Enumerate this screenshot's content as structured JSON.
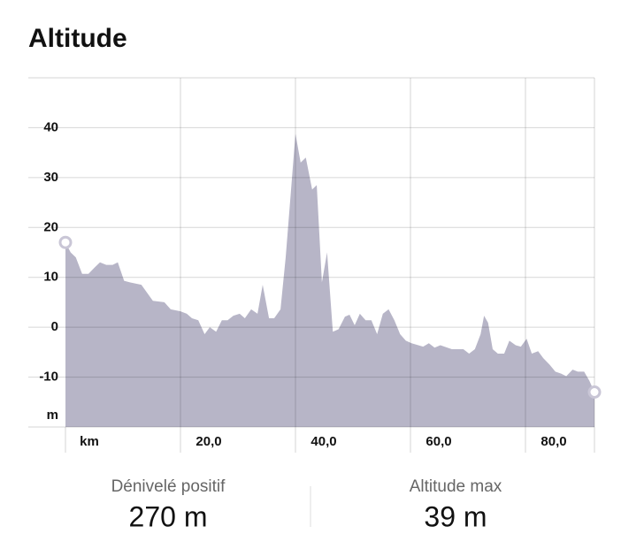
{
  "chart_data": {
    "type": "area",
    "title": "Altitude",
    "y_unit": "m",
    "x_unit": "km",
    "color": "#b7b5c7",
    "marker_color": "#c9c6d6",
    "x": [
      0,
      0.9,
      1.8,
      2.9,
      4,
      5.1,
      6,
      7.1,
      8.2,
      9.1,
      10.2,
      11.2,
      13.2,
      15.2,
      17.2,
      18.3,
      20,
      21.1,
      22,
      23.1,
      24.2,
      25.1,
      26.2,
      27.2,
      28.2,
      29.2,
      30.3,
      31.2,
      32.3,
      33.4,
      34.3,
      35.4,
      36.3,
      37.4,
      38.3,
      39.4,
      40,
      40.9,
      41.8,
      42.9,
      43.7,
      44.6,
      45.5,
      46.5,
      47.5,
      48.6,
      49.4,
      50.3,
      51.2,
      52.2,
      53.2,
      54.2,
      55.2,
      56.2,
      57.2,
      58.2,
      59.2,
      60.2,
      62.2,
      63.2,
      64.2,
      65.2,
      67.2,
      69.2,
      70.2,
      71.2,
      72.2,
      72.8,
      73.5,
      74.3,
      75.2,
      76.3,
      77.2,
      78.3,
      79.2,
      80.2,
      81.1,
      82.2,
      83.1,
      84.2,
      85.2,
      86.2,
      87.1,
      88.2,
      89.1,
      90.2,
      91.1,
      92
    ],
    "values": [
      17,
      15,
      14,
      10.7,
      10.7,
      12,
      13,
      12.5,
      12.5,
      13,
      9.3,
      9,
      8.5,
      5.3,
      5,
      3.6,
      3.2,
      2.7,
      1.8,
      1.4,
      -1.4,
      0,
      -0.9,
      1.4,
      1.4,
      2.3,
      2.7,
      1.8,
      3.6,
      2.7,
      8.5,
      1.8,
      1.8,
      3.6,
      14,
      30,
      38.8,
      33,
      34,
      27.6,
      28.5,
      9,
      15,
      -0.9,
      -0.4,
      2.1,
      2.5,
      0.4,
      2.7,
      1.4,
      1.4,
      -1.4,
      2.7,
      3.6,
      1.4,
      -1.4,
      -2.7,
      -3.2,
      -3.9,
      -3.2,
      -4.1,
      -3.6,
      -4.4,
      -4.4,
      -5.3,
      -4.4,
      -1.4,
      2.3,
      0.9,
      -4.4,
      -5.3,
      -5.3,
      -2.7,
      -3.6,
      -3.9,
      -2.3,
      -5.3,
      -4.8,
      -6.2,
      -7.5,
      -8.9,
      -9.3,
      -9.8,
      -8.5,
      -8.9,
      -8.9,
      -10.7,
      -13
    ],
    "xlim": [
      0,
      92
    ],
    "ylim": [
      -20,
      50
    ],
    "xticks": [
      {
        "value": 20,
        "label": "20,0"
      },
      {
        "value": 40,
        "label": "40,0"
      },
      {
        "value": 60,
        "label": "60,0"
      },
      {
        "value": 80,
        "label": "80,0"
      }
    ],
    "yticks": [
      40,
      30,
      20,
      10,
      0,
      -10
    ],
    "grid": true,
    "stats": [
      {
        "label": "Dénivelé positif",
        "value": "270 m"
      },
      {
        "label": "Altitude max",
        "value": "39 m"
      }
    ]
  }
}
